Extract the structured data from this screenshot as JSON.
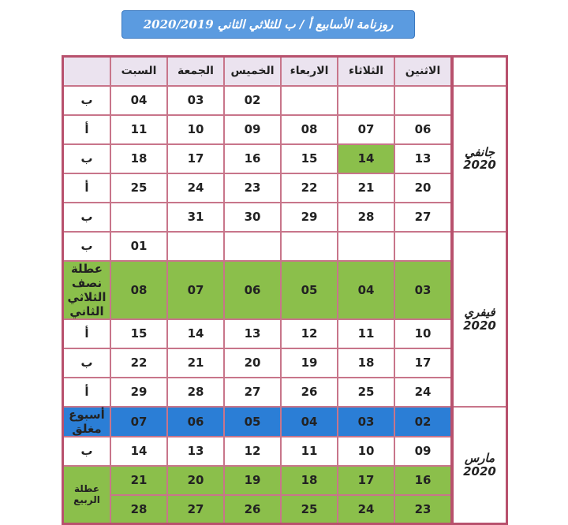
{
  "title": "روزنامة الأسابيع أ / ب للثلاثي الثاني 2020/2019",
  "headers": [
    "",
    "السبت",
    "الجمعة",
    "الخميس",
    "الاربعاء",
    "الثلاثاء",
    "الاثنين"
  ],
  "colors": {
    "green": "#8bbf4b",
    "blue": "#2b7ed6",
    "border": "#b8516d",
    "title": "#5b9be0"
  },
  "months": [
    {
      "name": "جانفي",
      "year": "2020",
      "rows": [
        {
          "label": "ب",
          "days": [
            "04",
            "03",
            "02",
            "",
            "",
            ""
          ]
        },
        {
          "label": "أ",
          "days": [
            "11",
            "10",
            "09",
            "08",
            "07",
            "06"
          ]
        },
        {
          "label": "ب",
          "days": [
            "18",
            "17",
            "16",
            "15",
            "14",
            "13"
          ],
          "highlight": {
            "4": "green"
          }
        },
        {
          "label": "أ",
          "days": [
            "25",
            "24",
            "23",
            "22",
            "21",
            "20"
          ]
        },
        {
          "label": "ب",
          "days": [
            "",
            "31",
            "30",
            "29",
            "28",
            "27"
          ]
        }
      ]
    },
    {
      "name": "فيفري",
      "year": "2020",
      "rows": [
        {
          "label": "ب",
          "days": [
            "01",
            "",
            "",
            "",
            "",
            ""
          ]
        },
        {
          "label": "عطلة نصف الثلاثي الثاني",
          "days": [
            "08",
            "07",
            "06",
            "05",
            "04",
            "03"
          ],
          "row_color": "green"
        },
        {
          "label": "أ",
          "days": [
            "15",
            "14",
            "13",
            "12",
            "11",
            "10"
          ]
        },
        {
          "label": "ب",
          "days": [
            "22",
            "21",
            "20",
            "19",
            "18",
            "17"
          ]
        },
        {
          "label": "أ",
          "days": [
            "29",
            "28",
            "27",
            "26",
            "25",
            "24"
          ]
        }
      ]
    },
    {
      "name": "مارس",
      "year": "2020",
      "rows": [
        {
          "label": "أسبوع مغلق",
          "days": [
            "07",
            "06",
            "05",
            "04",
            "03",
            "02"
          ],
          "row_color": "blue"
        },
        {
          "label": "ب",
          "days": [
            "14",
            "13",
            "12",
            "11",
            "10",
            "09"
          ]
        },
        {
          "label": "عطلة الربيع",
          "days": [
            "21",
            "20",
            "19",
            "18",
            "17",
            "16"
          ],
          "row_color": "green"
        },
        {
          "label": "عطلة الربيع",
          "days": [
            "28",
            "27",
            "26",
            "25",
            "24",
            "23"
          ],
          "row_color": "green",
          "label_merged": true
        }
      ]
    }
  ]
}
